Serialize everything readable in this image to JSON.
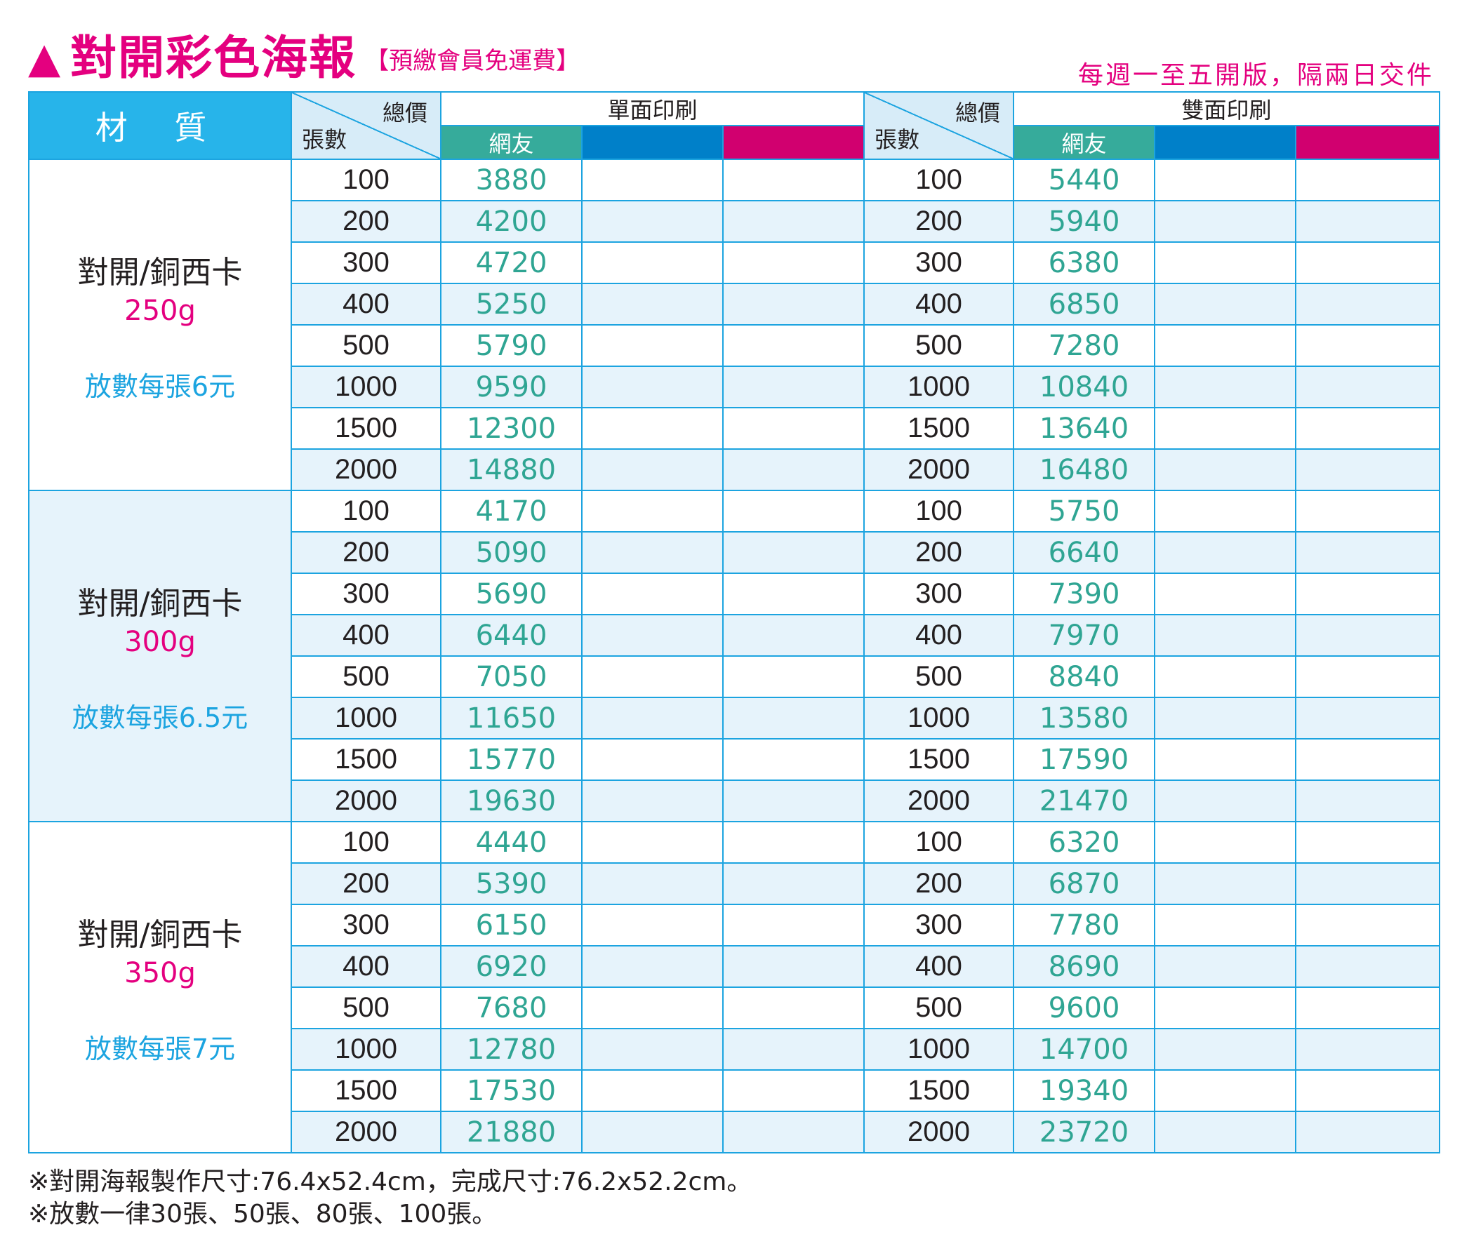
{
  "header": {
    "triangle": "▲",
    "title": "對開彩色海報",
    "subtitle": "【預繳會員免運費】",
    "schedule": "每週一至五開版，隔兩日交件"
  },
  "table_header": {
    "material": "材 質",
    "total_label": "總價",
    "count_label": "張數",
    "single_side": "單面印刷",
    "double_side": "雙面印刷",
    "netizen": "網友"
  },
  "groups": [
    {
      "name": "對開/銅西卡",
      "weight": "250g",
      "note": "放數每張6元",
      "rows": [
        {
          "qty": "100",
          "single": "3880",
          "double": "5440"
        },
        {
          "qty": "200",
          "single": "4200",
          "double": "5940"
        },
        {
          "qty": "300",
          "single": "4720",
          "double": "6380"
        },
        {
          "qty": "400",
          "single": "5250",
          "double": "6850"
        },
        {
          "qty": "500",
          "single": "5790",
          "double": "7280"
        },
        {
          "qty": "1000",
          "single": "9590",
          "double": "10840"
        },
        {
          "qty": "1500",
          "single": "12300",
          "double": "13640"
        },
        {
          "qty": "2000",
          "single": "14880",
          "double": "16480"
        }
      ]
    },
    {
      "name": "對開/銅西卡",
      "weight": "300g",
      "note": "放數每張6.5元",
      "rows": [
        {
          "qty": "100",
          "single": "4170",
          "double": "5750"
        },
        {
          "qty": "200",
          "single": "5090",
          "double": "6640"
        },
        {
          "qty": "300",
          "single": "5690",
          "double": "7390"
        },
        {
          "qty": "400",
          "single": "6440",
          "double": "7970"
        },
        {
          "qty": "500",
          "single": "7050",
          "double": "8840"
        },
        {
          "qty": "1000",
          "single": "11650",
          "double": "13580"
        },
        {
          "qty": "1500",
          "single": "15770",
          "double": "17590"
        },
        {
          "qty": "2000",
          "single": "19630",
          "double": "21470"
        }
      ]
    },
    {
      "name": "對開/銅西卡",
      "weight": "350g",
      "note": "放數每張7元",
      "rows": [
        {
          "qty": "100",
          "single": "4440",
          "double": "6320"
        },
        {
          "qty": "200",
          "single": "5390",
          "double": "6870"
        },
        {
          "qty": "300",
          "single": "6150",
          "double": "7780"
        },
        {
          "qty": "400",
          "single": "6920",
          "double": "8690"
        },
        {
          "qty": "500",
          "single": "7680",
          "double": "9600"
        },
        {
          "qty": "1000",
          "single": "12780",
          "double": "14700"
        },
        {
          "qty": "1500",
          "single": "17530",
          "double": "19340"
        },
        {
          "qty": "2000",
          "single": "21880",
          "double": "23720"
        }
      ]
    }
  ],
  "notes": [
    "※對開海報製作尺寸:76.4x52.4cm，完成尺寸:76.2x52.2cm。",
    "※放數一律30張、50張、80張、100張。"
  ],
  "colors": {
    "brand_pink": "#e4007f",
    "header_blue": "#27b4ea",
    "line_blue": "#1ca4e0",
    "price_green": "#2fa593",
    "tab_green": "#36ab9b",
    "tab_blue": "#0080c9",
    "tab_magenta": "#d1006f",
    "row_tint": "#e6f3fb"
  }
}
